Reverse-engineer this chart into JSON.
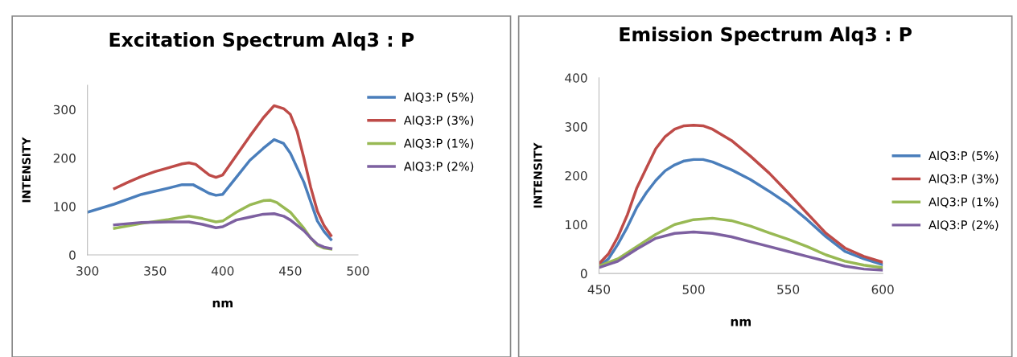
{
  "chart_data": [
    {
      "type": "line",
      "title": "Excitation Spectrum Alq3 : P",
      "xlabel": "nm",
      "ylabel": "INTENSITY",
      "xlim": [
        300,
        500
      ],
      "xticks": [
        300,
        350,
        400,
        450,
        500
      ],
      "ylim": [
        0,
        350
      ],
      "yticks": [
        0,
        100,
        200,
        300
      ],
      "grid": false,
      "legend": "top right",
      "marker": "none",
      "line_style": "solid",
      "series": [
        {
          "name": "AlQ3:P (5%)",
          "color": "#4a7ebb",
          "x": [
            300,
            320,
            340,
            360,
            370,
            378,
            390,
            395,
            400,
            410,
            420,
            430,
            438,
            445,
            450,
            460,
            465,
            470,
            475,
            480
          ],
          "values": [
            88,
            105,
            125,
            138,
            145,
            145,
            127,
            123,
            125,
            160,
            195,
            220,
            238,
            230,
            210,
            150,
            110,
            70,
            48,
            32
          ]
        },
        {
          "name": "AlQ3:P (3%)",
          "color": "#be4b48",
          "x": [
            320,
            330,
            340,
            350,
            360,
            370,
            375,
            380,
            390,
            395,
            400,
            410,
            420,
            430,
            438,
            445,
            450,
            455,
            460,
            465,
            470,
            475,
            480
          ],
          "values": [
            137,
            150,
            162,
            172,
            180,
            188,
            190,
            187,
            165,
            160,
            165,
            205,
            245,
            283,
            308,
            302,
            290,
            255,
            200,
            140,
            90,
            60,
            40
          ]
        },
        {
          "name": "AlQ3:P (1%)",
          "color": "#98b954",
          "x": [
            320,
            340,
            360,
            375,
            385,
            395,
            400,
            410,
            420,
            430,
            435,
            440,
            450,
            460,
            465,
            470,
            475,
            480
          ],
          "values": [
            55,
            65,
            73,
            80,
            75,
            68,
            70,
            88,
            103,
            112,
            113,
            108,
            88,
            55,
            35,
            20,
            14,
            12
          ]
        },
        {
          "name": "AlQ3:P (2%)",
          "color": "#7d60a0",
          "x": [
            320,
            340,
            360,
            375,
            385,
            395,
            400,
            410,
            420,
            430,
            438,
            445,
            450,
            460,
            465,
            470,
            475,
            480
          ],
          "values": [
            62,
            67,
            68,
            68,
            63,
            56,
            58,
            72,
            78,
            84,
            85,
            80,
            72,
            50,
            35,
            22,
            16,
            13
          ]
        }
      ]
    },
    {
      "type": "line",
      "title": "Emission Spectrum Alq3 : P",
      "xlabel": "nm",
      "ylabel": "INTENSITY",
      "xlim": [
        450,
        600
      ],
      "xticks": [
        450,
        500,
        550,
        600
      ],
      "ylim": [
        0,
        400
      ],
      "yticks": [
        0,
        100,
        200,
        300,
        400
      ],
      "grid": false,
      "legend": "right",
      "marker": "none",
      "line_style": "solid",
      "series": [
        {
          "name": "AlQ3:P (5%)",
          "color": "#4a7ebb",
          "x": [
            450,
            455,
            460,
            465,
            470,
            475,
            480,
            485,
            490,
            495,
            500,
            505,
            510,
            520,
            530,
            540,
            550,
            560,
            570,
            580,
            590,
            600
          ],
          "values": [
            15,
            30,
            60,
            95,
            135,
            165,
            190,
            210,
            222,
            230,
            233,
            233,
            228,
            212,
            192,
            168,
            142,
            110,
            75,
            45,
            30,
            18
          ]
        },
        {
          "name": "AlQ3:P (3%)",
          "color": "#be4b48",
          "x": [
            450,
            455,
            460,
            465,
            470,
            475,
            480,
            485,
            490,
            495,
            500,
            505,
            510,
            520,
            530,
            540,
            550,
            560,
            570,
            580,
            590,
            600
          ],
          "values": [
            20,
            40,
            75,
            120,
            175,
            215,
            255,
            280,
            295,
            302,
            303,
            302,
            295,
            272,
            240,
            205,
            165,
            123,
            82,
            52,
            35,
            23
          ]
        },
        {
          "name": "AlQ3:P (1%)",
          "color": "#98b954",
          "x": [
            450,
            460,
            470,
            480,
            490,
            500,
            510,
            520,
            530,
            540,
            550,
            560,
            570,
            580,
            590,
            600
          ],
          "values": [
            15,
            30,
            55,
            80,
            100,
            110,
            113,
            108,
            97,
            83,
            70,
            55,
            38,
            25,
            17,
            12
          ]
        },
        {
          "name": "AlQ3:P (2%)",
          "color": "#7d60a0",
          "x": [
            450,
            460,
            470,
            480,
            490,
            500,
            510,
            520,
            530,
            540,
            550,
            560,
            570,
            580,
            590,
            600
          ],
          "values": [
            12,
            25,
            50,
            72,
            82,
            85,
            82,
            75,
            65,
            55,
            45,
            35,
            25,
            15,
            9,
            7
          ]
        }
      ]
    }
  ]
}
